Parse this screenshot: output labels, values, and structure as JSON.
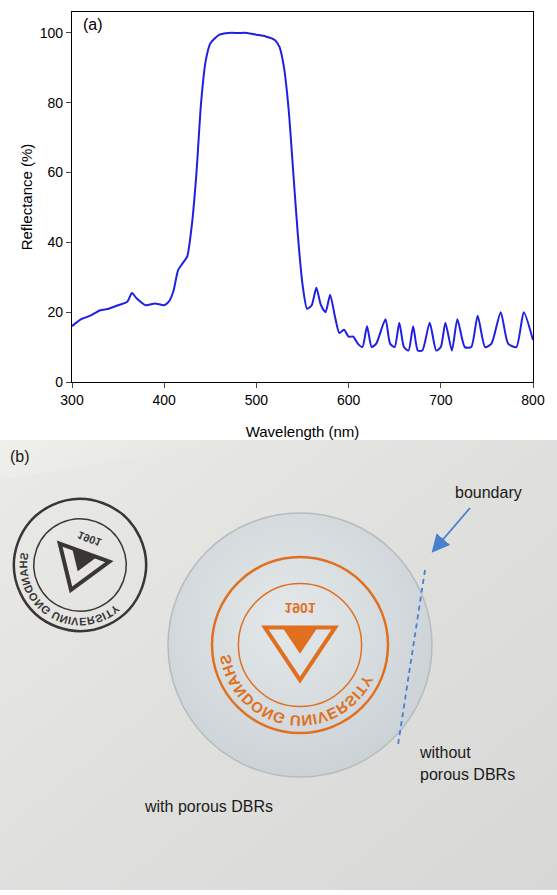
{
  "chart_data": {
    "type": "line",
    "annotations": [
      "(a)"
    ],
    "x_label": "Wavelength (nm)",
    "y_label": "Reflectance (%)",
    "color": "#1f1fe6",
    "x": [
      300,
      310,
      320,
      330,
      340,
      350,
      360,
      365,
      370,
      380,
      390,
      400,
      405,
      410,
      415,
      420,
      425,
      430,
      435,
      440,
      445,
      450,
      460,
      470,
      480,
      490,
      500,
      510,
      520,
      525,
      530,
      535,
      540,
      545,
      550,
      555,
      560,
      565,
      570,
      575,
      580,
      585,
      590,
      595,
      600,
      605,
      610,
      615,
      620,
      625,
      630,
      640,
      645,
      650,
      655,
      660,
      665,
      670,
      675,
      680,
      688,
      695,
      700,
      705,
      712,
      718,
      726,
      733,
      740,
      748,
      755,
      765,
      773,
      782,
      790,
      800
    ],
    "values": [
      16,
      18,
      19,
      20.5,
      21,
      22,
      23,
      25.5,
      24,
      22,
      22.5,
      22,
      23,
      26,
      32,
      34,
      36,
      45,
      60,
      80,
      92,
      97,
      99.5,
      100,
      100,
      100,
      99.5,
      99,
      98,
      96,
      90,
      78,
      60,
      42,
      28,
      21,
      22,
      27,
      22,
      20,
      25,
      19,
      14,
      15,
      13,
      13,
      11,
      10,
      16,
      10,
      11,
      18,
      11,
      10,
      17,
      10,
      9,
      16,
      9,
      9,
      17,
      9,
      10,
      17,
      9,
      18,
      10,
      10,
      19,
      10,
      11,
      20,
      11,
      10,
      20,
      12
    ],
    "xlim": [
      300,
      800
    ],
    "ylim": [
      0,
      106
    ],
    "xticks": [
      300,
      400,
      500,
      600,
      700,
      800
    ],
    "yticks": [
      0,
      20,
      40,
      60,
      80,
      100
    ],
    "grid": false
  },
  "photo": {
    "panel_label": "(b)",
    "logo_texts": [
      "SHANDONG UNIVERSITY",
      "1901"
    ],
    "boundary": "boundary",
    "with": "with porous DBRs",
    "without": [
      "without",
      "porous DBRs"
    ]
  }
}
